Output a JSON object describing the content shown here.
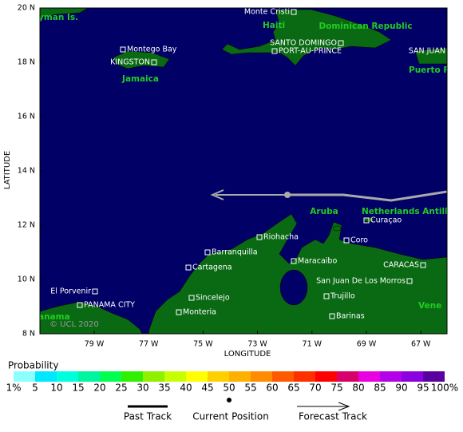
{
  "map": {
    "lat_ticks": [
      {
        "value": 8,
        "label": "8 N"
      },
      {
        "value": 10,
        "label": "10 N"
      },
      {
        "value": 12,
        "label": "12 N"
      },
      {
        "value": 14,
        "label": "14 N"
      },
      {
        "value": 16,
        "label": "16 N"
      },
      {
        "value": 18,
        "label": "18 N"
      },
      {
        "value": 20,
        "label": "20 N"
      }
    ],
    "lon_ticks": [
      {
        "value": -79,
        "label": "79 W"
      },
      {
        "value": -77,
        "label": "77 W"
      },
      {
        "value": -75,
        "label": "75 W"
      },
      {
        "value": -73,
        "label": "73 W"
      },
      {
        "value": -71,
        "label": "71 W"
      },
      {
        "value": -69,
        "label": "69 W"
      },
      {
        "value": -67,
        "label": "67 W"
      }
    ],
    "lat_label": "LATITUDE",
    "lon_label": "LONGITUDE",
    "watermark": "© UCL 2020",
    "countries": [
      "yman Is.",
      "Haiti",
      "Dominican Republic",
      "Jamaica",
      "Puerto Ric",
      "Aruba",
      "Netherlands Antilles",
      "Vene",
      "anama"
    ],
    "places": [
      "Monte Cristi",
      "SANTO DOMINGO",
      "PORT-AU-PRINCE",
      "SAN JUAN",
      "Montego Bay",
      "KINGSTON",
      "Riohacha",
      "Barranquilla",
      "Cartagena",
      "Sincelejo",
      "Monteria",
      "El Porvenir",
      "PANAMA CITY",
      "Maracaibo",
      "Coro",
      "Curaçao",
      "CARACAS",
      "San Juan De Los Morros",
      "Trujillo",
      "Barinas"
    ]
  },
  "legend": {
    "title": "Probability",
    "labels": [
      "1%",
      "5",
      "10",
      "15",
      "20",
      "25",
      "30",
      "35",
      "40",
      "45",
      "50",
      "55",
      "60",
      "65",
      "70",
      "75",
      "80",
      "85",
      "90",
      "95",
      "100%"
    ],
    "colors": [
      "#8cffff",
      "#00e8ff",
      "#00ffdc",
      "#00f5a0",
      "#00ff50",
      "#30f000",
      "#90f000",
      "#c8ff00",
      "#ffff00",
      "#ffd000",
      "#ffb000",
      "#ff8c00",
      "#ff5a00",
      "#ff3000",
      "#ff0000",
      "#d8006a",
      "#e800e0",
      "#b400e8",
      "#8c00e0",
      "#5a00a0",
      "#5a005a"
    ],
    "past_track": "Past Track",
    "current_position": "Current Position",
    "forecast_track": "Forecast Track"
  }
}
